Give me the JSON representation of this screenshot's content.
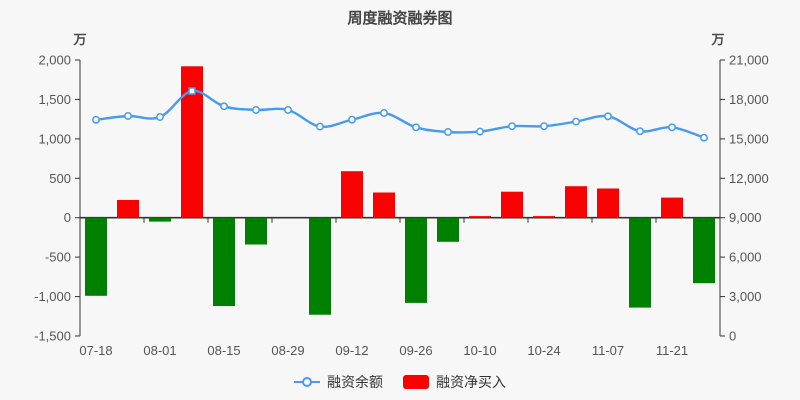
{
  "title": "周度融资融券图",
  "left_axis": {
    "unit": "万"
  },
  "right_axis": {
    "unit": "万"
  },
  "legend": [
    {
      "label": "融资余额",
      "type": "line"
    },
    {
      "label": "融资净买入",
      "type": "bar"
    }
  ],
  "colors": {
    "background": "#f7f7f7",
    "line": "#469bf0",
    "bar_positive": "#fa0000",
    "bar_negative": "#008000",
    "axis": "#333333",
    "text": "#555555",
    "title": "#444444"
  },
  "chart_data": {
    "type": "bar",
    "n_points": 20,
    "x_labels": [
      "07-18",
      "08-01",
      "08-15",
      "08-29",
      "09-12",
      "09-26",
      "10-10",
      "10-24",
      "11-07",
      "11-21"
    ],
    "label_indices": [
      0,
      2,
      4,
      6,
      8,
      10,
      12,
      14,
      16,
      18
    ],
    "left_ylim": [
      -1500,
      2000
    ],
    "left_step": 500,
    "right_ylim": [
      0,
      21000
    ],
    "right_step": 3000,
    "left_axis_ticks": [
      "2,000",
      "1,500",
      "1,000",
      "500",
      "0",
      "-500",
      "-1,000",
      "-1,500"
    ],
    "right_axis_ticks": [
      "21,000",
      "18,000",
      "15,000",
      "12,000",
      "9,000",
      "6,000",
      "3,000",
      "0"
    ],
    "series": [
      {
        "name": "融资净买入",
        "type": "bar",
        "axis": "left",
        "values": [
          -990,
          225,
          -50,
          1920,
          -1120,
          -340,
          0,
          -1230,
          590,
          320,
          -1080,
          -305,
          20,
          330,
          20,
          400,
          370,
          -1140,
          255,
          -830
        ]
      },
      {
        "name": "融资余额",
        "type": "line",
        "axis": "right",
        "values": [
          16450,
          16740,
          16660,
          18640,
          17480,
          17200,
          17200,
          15930,
          16460,
          16970,
          15880,
          15520,
          15550,
          15960,
          15960,
          16310,
          16720,
          15580,
          15880,
          15090
        ]
      }
    ],
    "grid": false,
    "legend_position": "bottom"
  }
}
